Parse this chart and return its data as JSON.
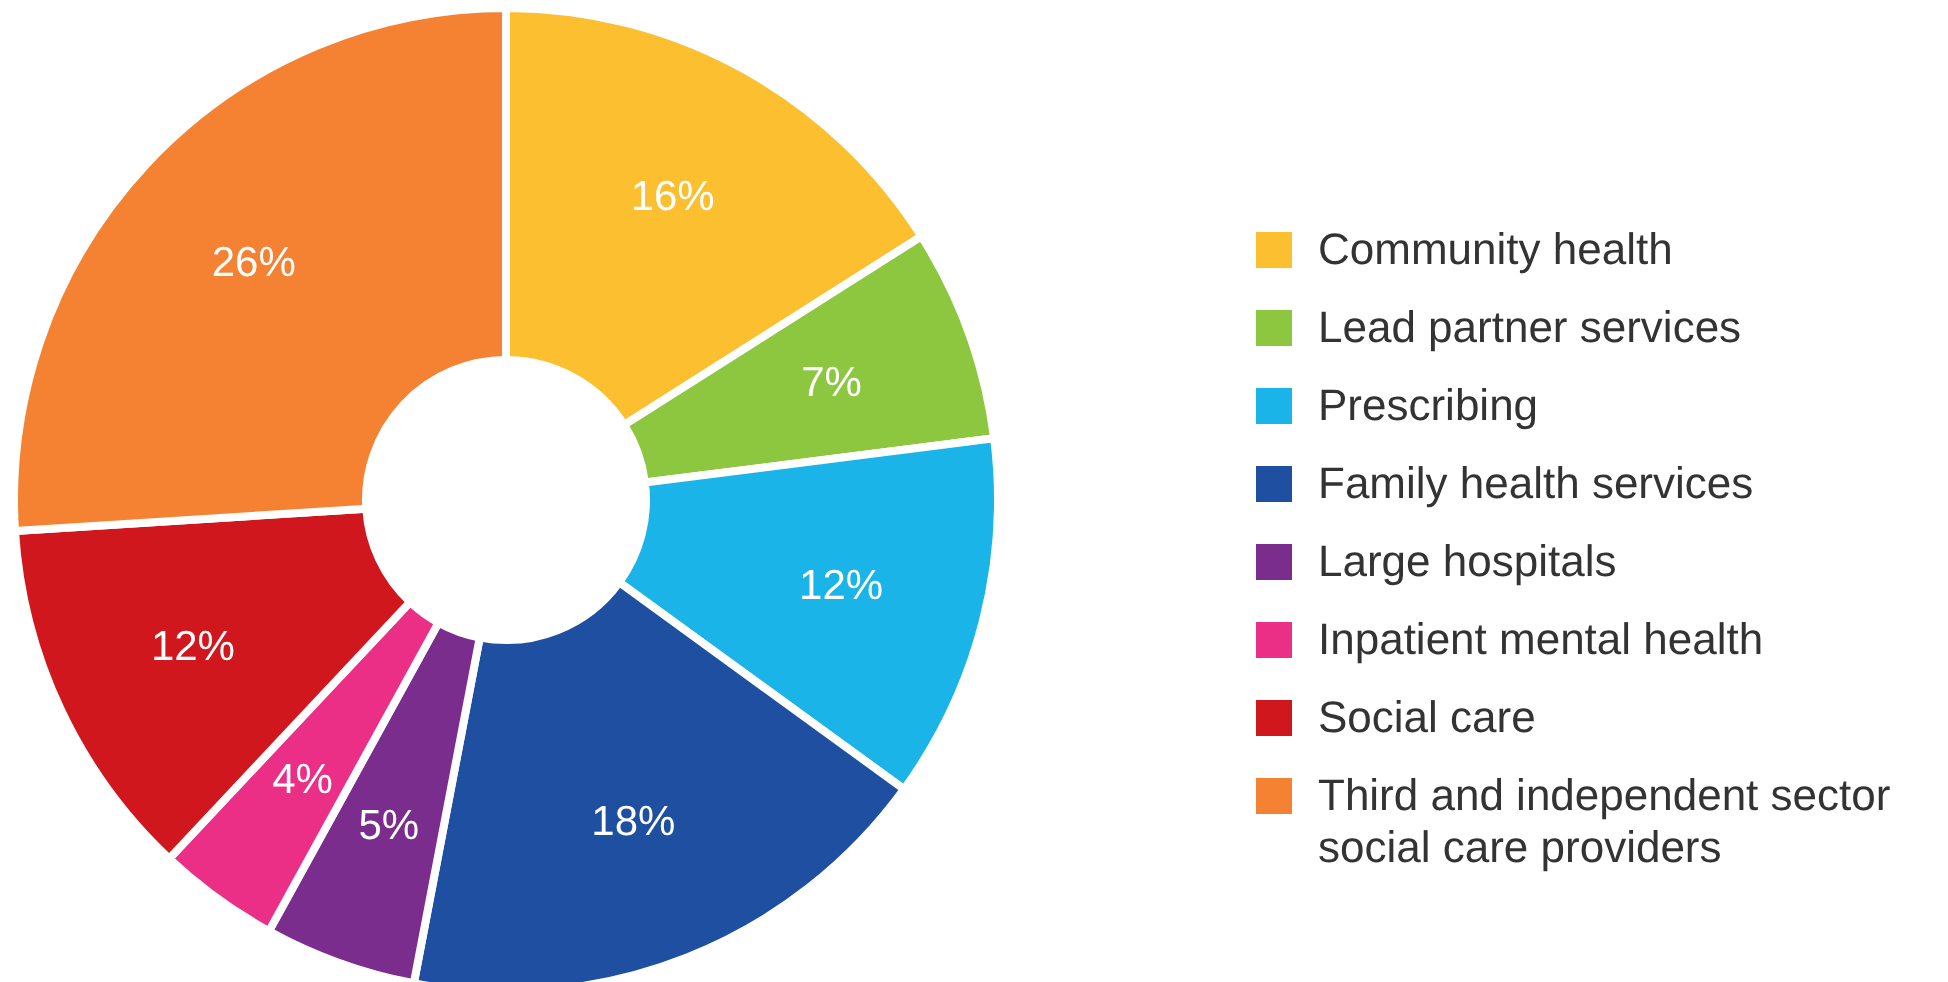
{
  "chart_data": {
    "type": "donut",
    "categories": [
      "Community health",
      "Lead partner services",
      "Prescribing",
      "Family health services",
      "Large hospitals",
      "Inpatient mental health",
      "Social care",
      "Third and independent sector social care providers"
    ],
    "values": [
      16,
      7,
      12,
      18,
      5,
      4,
      12,
      26
    ],
    "value_labels": [
      "16%",
      "7%",
      "12%",
      "18%",
      "5%",
      "4%",
      "12%",
      "26%"
    ],
    "colors": [
      "#fbbf2f",
      "#8dc63f",
      "#1ab4e8",
      "#1f4fa0",
      "#7b2d8e",
      "#ec2f86",
      "#d0171e",
      "#f58233"
    ],
    "legend": "right"
  }
}
